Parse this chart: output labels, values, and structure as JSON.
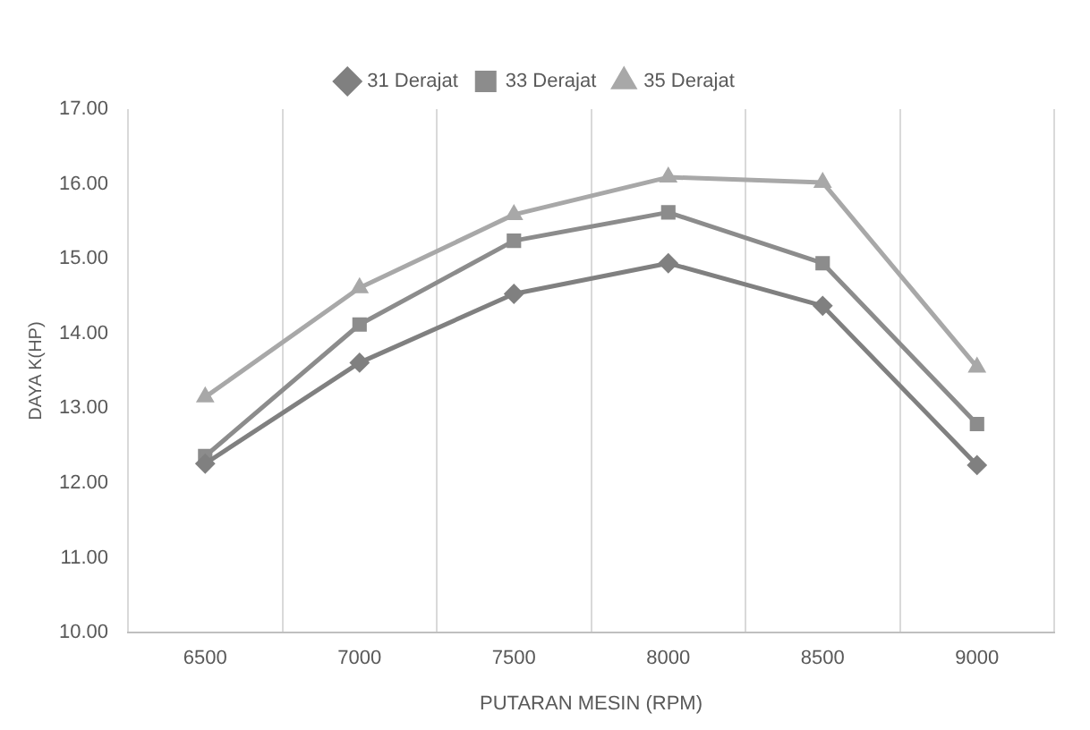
{
  "chart_data": {
    "type": "line",
    "xlabel": "PUTARAN MESIN (RPM)",
    "ylabel": "DAYA K(HP)",
    "categories": [
      "6500",
      "7000",
      "7500",
      "8000",
      "8500",
      "9000"
    ],
    "series": [
      {
        "name": "31 Derajat",
        "color": "#808080",
        "marker": "diamond",
        "values": [
          12.26,
          13.61,
          14.53,
          14.94,
          14.37,
          12.24
        ]
      },
      {
        "name": "33 Derajat",
        "color": "#8c8c8c",
        "marker": "square",
        "values": [
          12.36,
          14.12,
          15.24,
          15.62,
          14.94,
          12.79
        ]
      },
      {
        "name": "35 Derajat",
        "color": "#a8a8a8",
        "marker": "triangle",
        "values": [
          13.15,
          14.61,
          15.59,
          16.09,
          16.02,
          13.55
        ]
      }
    ],
    "ylim": [
      10,
      17
    ],
    "yticks": [
      {
        "value": 10,
        "label": "10.00"
      },
      {
        "value": 11,
        "label": "11.00"
      },
      {
        "value": 12,
        "label": "12.00"
      },
      {
        "value": 13,
        "label": "13.00"
      },
      {
        "value": 14,
        "label": "14.00"
      },
      {
        "value": 15,
        "label": "15.00"
      },
      {
        "value": 16,
        "label": "16.00"
      },
      {
        "value": 17,
        "label": "17.00"
      }
    ],
    "grid": "x",
    "legend": "top"
  }
}
